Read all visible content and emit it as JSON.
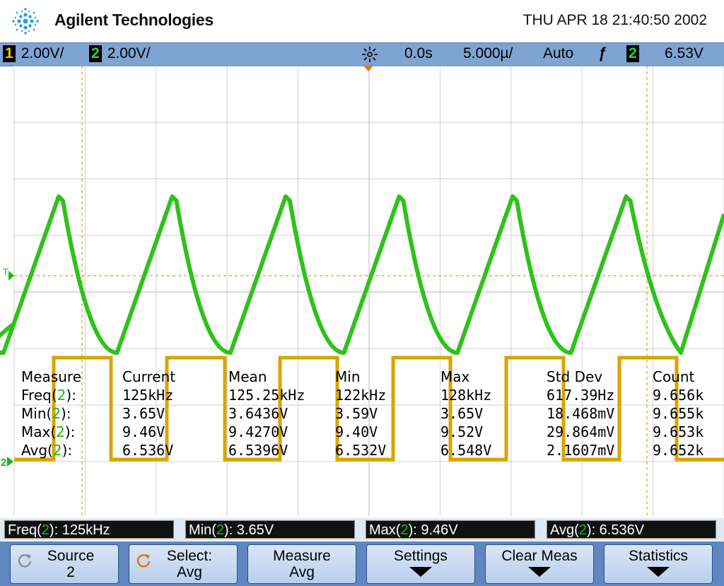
{
  "header": {
    "brand": "Agilent Technologies",
    "datetime": "THU APR 18 21:40:50 2002"
  },
  "statusbar": {
    "ch1_label": "1",
    "ch1_scale": "2.00V/",
    "ch2_label": "2",
    "ch2_scale": "2.00V/",
    "delay": "0.0s",
    "timebase": "5.000µ/",
    "trigger_mode": "Auto",
    "trigger_slope": "ƒ",
    "trigger_ch": "2",
    "trigger_level": "6.53V"
  },
  "markers": {
    "trigger": "T",
    "ch2_ground": "2"
  },
  "waveforms": {
    "ch2_color": "#2fc21a",
    "ch1_color": "#d9a400",
    "ch2_description": "triangle wave",
    "ch1_description": "square wave"
  },
  "measure_table": {
    "headers": [
      "Measure",
      "Current",
      "Mean",
      "Min",
      "Max",
      "Std Dev",
      "Count"
    ],
    "rows": [
      {
        "name": "Freq",
        "src": "2",
        "suffix": "):",
        "current": "125kHz",
        "mean": "125.25kHz",
        "min": "122kHz",
        "max": "128kHz",
        "std": "617.39Hz",
        "count": "9.656k"
      },
      {
        "name": "Min",
        "src": "2",
        "suffix": "):",
        "current": "3.65V",
        "mean": "3.6436V",
        "min": "3.59V",
        "max": "3.65V",
        "std": "18.468mV",
        "count": "9.655k"
      },
      {
        "name": "Max",
        "src": "2",
        "suffix": "):",
        "current": "9.46V",
        "mean": "9.4270V",
        "min": "9.40V",
        "max": "9.52V",
        "std": "29.864mV",
        "count": "9.653k"
      },
      {
        "name": "Avg",
        "src": "2",
        "suffix": "):",
        "current": "6.536V",
        "mean": "6.5396V",
        "min": "6.532V",
        "max": "6.548V",
        "std": "2.1607mV",
        "count": "9.652k"
      }
    ]
  },
  "readouts": [
    {
      "name": "Freq",
      "src": "2",
      "value": "): 125kHz"
    },
    {
      "name": "Min",
      "src": "2",
      "value": "): 3.65V"
    },
    {
      "name": "Max",
      "src": "2",
      "value": "): 9.46V"
    },
    {
      "name": "Avg",
      "src": "2",
      "value": "): 6.536V"
    }
  ],
  "softkeys": [
    {
      "line1": "Source",
      "line2": "2",
      "icon": "rotate-knob-icon"
    },
    {
      "line1": "Select:",
      "line2": "Avg",
      "icon": "rotate-knob-icon"
    },
    {
      "line1": "Measure",
      "line2": "Avg"
    },
    {
      "line1": "Settings",
      "arrow": "down-arrow-icon"
    },
    {
      "line1": "Clear Meas",
      "arrow": "down-arrow-icon"
    },
    {
      "line1": "Statistics",
      "arrow": "down-arrow-icon"
    }
  ]
}
